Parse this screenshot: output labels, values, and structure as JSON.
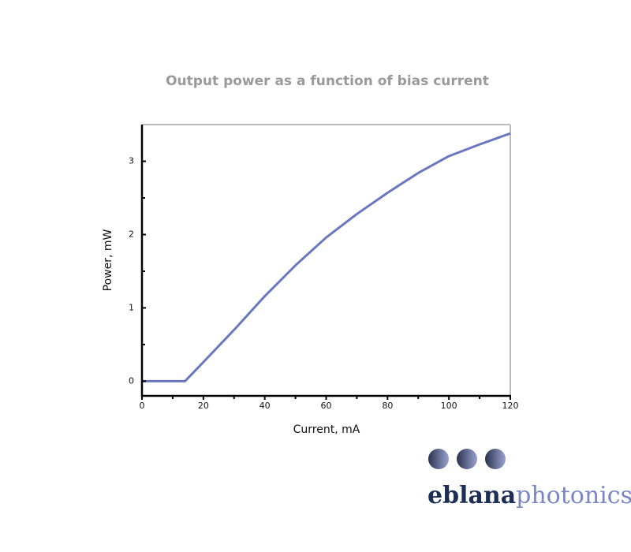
{
  "chart_data": {
    "type": "line",
    "title": "Output power as a function of bias current",
    "x_label": "Current, mA",
    "y_label": "Power, mW",
    "x": [
      0,
      10,
      14,
      20,
      30,
      40,
      50,
      60,
      70,
      80,
      90,
      100,
      110,
      120
    ],
    "values": [
      0,
      0,
      0,
      0.26,
      0.7,
      1.16,
      1.58,
      1.96,
      2.28,
      2.57,
      2.84,
      3.07,
      3.23,
      3.38
    ],
    "color": "#6b78bf",
    "xlim": [
      0,
      120
    ],
    "xticks": [
      0,
      20,
      40,
      60,
      80,
      100,
      120
    ],
    "xminorticks": [
      10,
      30,
      50,
      70,
      90,
      110
    ],
    "ylim": [
      -0.2,
      3.5
    ],
    "yticks": [
      0,
      1,
      2,
      3
    ],
    "yminorticks": [
      0.5,
      1.5,
      2.5
    ]
  },
  "logo": {
    "part1": "eblana",
    "part2": "photonics"
  }
}
